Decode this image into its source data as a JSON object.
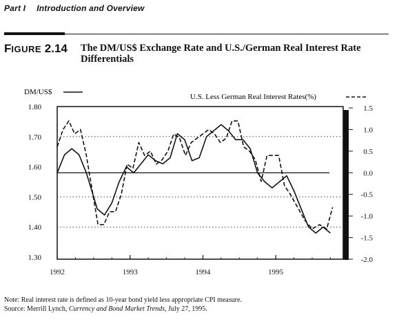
{
  "header": {
    "part": "Part I",
    "section": "Introduction and Overview"
  },
  "figure": {
    "label_prefix": "F",
    "label_small": "IGURE",
    "label_number": "2.14",
    "title": "The DM/US$ Exchange Rate and U.S./German Real Interest Rate Differentials"
  },
  "footnotes": {
    "note": "Note: Real interest rate is defined as 10-year bond yield less appropriate CPI measure.",
    "source_prefix": "Source: Merrill Lynch, ",
    "source_italic": "Currency and Bond Market Trends,",
    "source_suffix": " July 27, 1995."
  },
  "colors": {
    "ink": "#111111",
    "grid": "#444444"
  },
  "chart_data": {
    "type": "line",
    "legend_left": "DM/US$",
    "legend_right": "U.S. Less German Real Interest Rates(%)",
    "legend_placement": "top",
    "left_axis": {
      "ylim": [
        1.3,
        1.8
      ],
      "ticks": [
        1.3,
        1.4,
        1.5,
        1.6,
        1.7,
        1.8
      ],
      "tick_labels": [
        "1.30",
        "1.40",
        "1.50",
        "1.60",
        "1.70",
        "1.80"
      ]
    },
    "right_axis": {
      "ylim": [
        -2.0,
        1.5
      ],
      "ticks": [
        -2.0,
        -1.5,
        -1.0,
        -0.5,
        0.0,
        0.5,
        1.0,
        1.5
      ],
      "tick_labels": [
        "-2.0",
        "-1.5",
        "-1.0",
        "-0.5",
        "0.0",
        "0.5",
        "1.0",
        "1.5"
      ]
    },
    "x_axis": {
      "xlim": [
        1992.0,
        1995.85
      ],
      "ticks": [
        1992,
        1993,
        1994,
        1995
      ],
      "tick_labels": [
        "1992",
        "1993",
        "1994",
        "1995"
      ]
    },
    "grid": "dotted horizontal at 1.40, 1.50, 1.70; solid line at 1.58 (right 0.0)",
    "reference_lines": [
      1.4,
      1.5,
      1.7
    ],
    "zero_line_left_value": 1.58,
    "series": [
      {
        "name": "DM/US$",
        "axis": "left",
        "style": "solid",
        "x": [
          1992.0,
          1992.1,
          1992.2,
          1992.3,
          1992.4,
          1992.5,
          1992.55,
          1992.65,
          1992.75,
          1992.85,
          1992.95,
          1993.05,
          1993.15,
          1993.25,
          1993.35,
          1993.45,
          1993.55,
          1993.65,
          1993.75,
          1993.85,
          1993.95,
          1994.05,
          1994.15,
          1994.25,
          1994.35,
          1994.45,
          1994.55,
          1994.65,
          1994.75,
          1994.85,
          1994.95,
          1995.05,
          1995.15,
          1995.25,
          1995.35,
          1995.45,
          1995.55,
          1995.65,
          1995.75
        ],
        "y": [
          1.58,
          1.64,
          1.66,
          1.64,
          1.58,
          1.5,
          1.46,
          1.44,
          1.48,
          1.55,
          1.6,
          1.58,
          1.61,
          1.64,
          1.62,
          1.61,
          1.63,
          1.71,
          1.69,
          1.62,
          1.63,
          1.7,
          1.72,
          1.74,
          1.72,
          1.69,
          1.69,
          1.66,
          1.58,
          1.55,
          1.53,
          1.55,
          1.57,
          1.52,
          1.46,
          1.4,
          1.38,
          1.4,
          1.38
        ]
      },
      {
        "name": "U.S. Less German Real Interest Rates(%)",
        "axis": "right",
        "style": "dashed",
        "x": [
          1992.0,
          1992.08,
          1992.16,
          1992.24,
          1992.32,
          1992.4,
          1992.48,
          1992.56,
          1992.64,
          1992.72,
          1992.8,
          1992.88,
          1992.96,
          1993.04,
          1993.12,
          1993.2,
          1993.28,
          1993.36,
          1993.44,
          1993.52,
          1993.6,
          1993.68,
          1993.76,
          1993.84,
          1993.92,
          1994.0,
          1994.08,
          1994.16,
          1994.24,
          1994.32,
          1994.4,
          1994.48,
          1994.56,
          1994.64,
          1994.72,
          1994.8,
          1994.88,
          1994.96,
          1995.04,
          1995.12,
          1995.2,
          1995.3,
          1995.4,
          1995.5,
          1995.6,
          1995.7,
          1995.78
        ],
        "y": [
          0.6,
          1.0,
          1.2,
          0.9,
          1.0,
          0.4,
          -0.4,
          -1.2,
          -1.2,
          -0.9,
          -0.9,
          -0.5,
          0.2,
          0.1,
          0.7,
          0.4,
          0.5,
          0.2,
          0.3,
          0.5,
          0.9,
          0.8,
          0.4,
          0.7,
          0.8,
          0.9,
          1.0,
          0.9,
          0.7,
          0.8,
          1.2,
          1.2,
          0.6,
          0.5,
          0.3,
          -0.2,
          0.4,
          0.4,
          0.4,
          -0.3,
          -0.5,
          -0.8,
          -1.1,
          -1.3,
          -1.2,
          -1.3,
          -0.8
        ]
      }
    ]
  }
}
